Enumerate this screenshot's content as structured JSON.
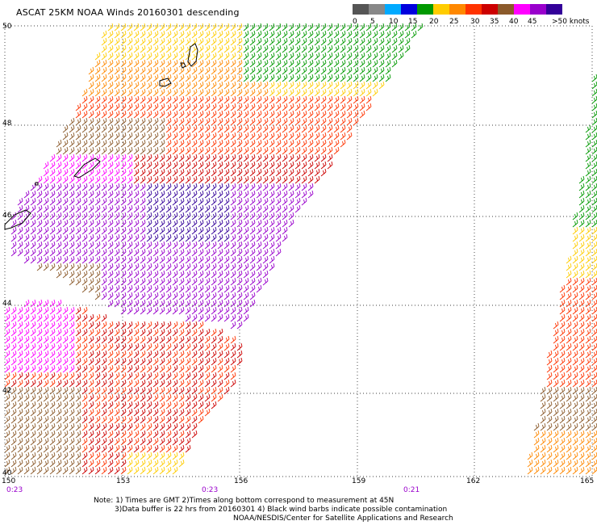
{
  "title": "ASCAT 25KM NOAA Winds 20160301 descending",
  "legend": {
    "labels": [
      "0",
      "5",
      "10",
      "15",
      "20",
      "25",
      "30",
      "35",
      "40",
      "45",
      ">50 knots"
    ],
    "colors": [
      "#555555",
      "#888888",
      "#00aaff",
      "#0000dd",
      "#009900",
      "#ffcc00",
      "#ff8800",
      "#ff3300",
      "#cc0000",
      "#8b5a2b",
      "#ff00ff",
      "#9900cc",
      "#330099"
    ]
  },
  "lat_labels": [
    "50",
    "48",
    "46",
    "44",
    "42",
    "40"
  ],
  "lon_labels": [
    "150",
    "153",
    "156",
    "159",
    "162",
    "165"
  ],
  "times": [
    "0:23",
    "0:23",
    "0:21"
  ],
  "notes": {
    "line1": "Note: 1) Times are GMT 2)Times along bottom correspond to measurement at 45N",
    "line2": "3)Data buffer is 22 hrs from 20160301 4) Black wind barbs indicate possible contamination",
    "line3": "NOAA/NESDIS/Center for Satellite Applications and Research"
  }
}
